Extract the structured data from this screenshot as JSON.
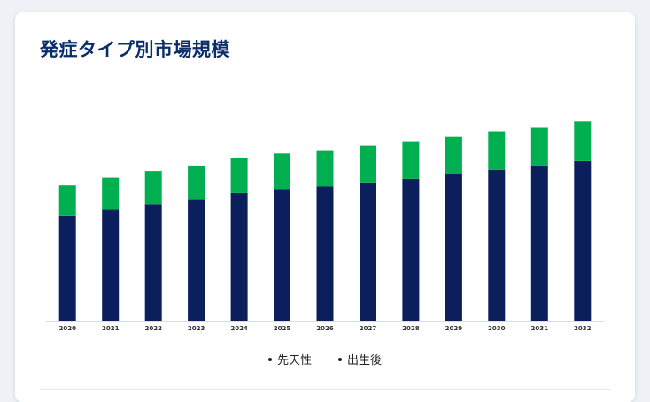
{
  "card": {
    "title": "発症タイプ別市場規模"
  },
  "chart_data": {
    "type": "bar",
    "stacked": true,
    "categories": [
      "2020",
      "2021",
      "2022",
      "2023",
      "2024",
      "2025",
      "2026",
      "2027",
      "2028",
      "2029",
      "2030",
      "2031",
      "2032"
    ],
    "series": [
      {
        "name": "先天性",
        "color": "#0a1f5c",
        "values": [
          48,
          51,
          53.5,
          55.5,
          58.5,
          60,
          61.5,
          63,
          65,
          67,
          69,
          71,
          73
        ]
      },
      {
        "name": "出生後",
        "color": "#00b050",
        "values": [
          14,
          14.5,
          15,
          15.5,
          16,
          16.5,
          16.5,
          17,
          17,
          17,
          17.5,
          17.5,
          18
        ]
      }
    ],
    "ylim": [
      0,
      100
    ],
    "grid": false,
    "legend_position": "bottom-center"
  },
  "legend": {
    "items": [
      {
        "label": "先天性"
      },
      {
        "label": "出生後"
      }
    ]
  }
}
